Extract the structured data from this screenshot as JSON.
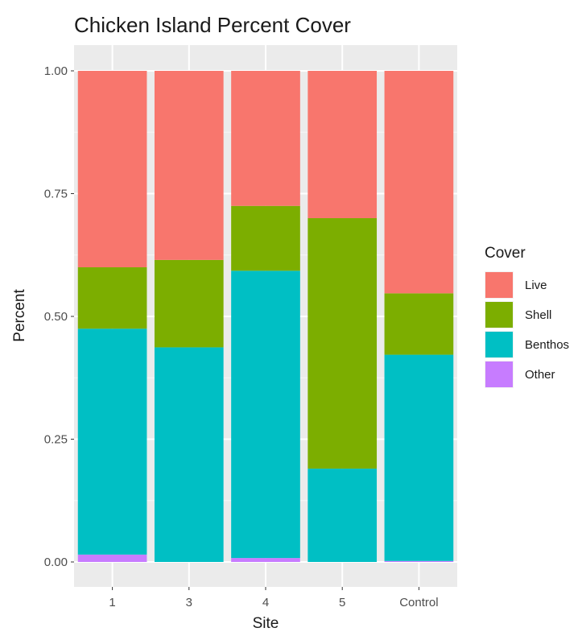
{
  "chart_data": {
    "type": "bar",
    "stacked": true,
    "title": "Chicken Island Percent Cover",
    "xlabel": "Site",
    "ylabel": "Percent",
    "ylim": [
      0,
      1
    ],
    "y_ticks": [
      "0.00",
      "0.25",
      "0.50",
      "0.75",
      "1.00"
    ],
    "categories": [
      "1",
      "3",
      "4",
      "5",
      "Control"
    ],
    "grid": true,
    "legend": {
      "title": "Cover",
      "position": "right"
    },
    "series": [
      {
        "name": "Other",
        "color": "#c77cff",
        "values": [
          0.015,
          0.0,
          0.008,
          0.0,
          0.002
        ]
      },
      {
        "name": "Benthos",
        "color": "#00bfc4",
        "values": [
          0.46,
          0.437,
          0.585,
          0.19,
          0.42
        ]
      },
      {
        "name": "Shell",
        "color": "#7cae00",
        "values": [
          0.125,
          0.178,
          0.132,
          0.51,
          0.125
        ]
      },
      {
        "name": "Live",
        "color": "#f8766d",
        "values": [
          0.4,
          0.385,
          0.275,
          0.3,
          0.453
        ]
      }
    ],
    "legend_order": [
      "Live",
      "Shell",
      "Benthos",
      "Other"
    ]
  }
}
